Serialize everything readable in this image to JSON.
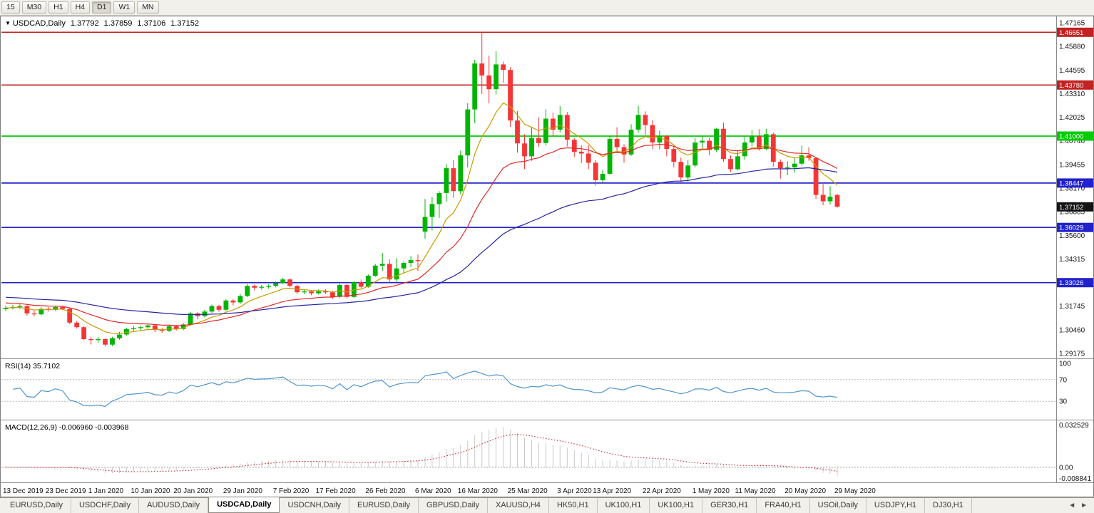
{
  "toolbar": {
    "timeframes": [
      "15",
      "M30",
      "H1",
      "H4",
      "D1",
      "W1",
      "MN"
    ],
    "active": "D1"
  },
  "chart_header": {
    "dropdown_icon": "▼",
    "title": "USDCAD,Daily",
    "open": "1.37792",
    "high": "1.37859",
    "low": "1.37106",
    "close": "1.37152"
  },
  "indicators": {
    "rsi_label": "RSI(14) 35.7102",
    "macd_label": "MACD(12,26,9) -0.006960 -0.003968"
  },
  "tabs": {
    "items": [
      "EURUSD,Daily",
      "USDCHF,Daily",
      "AUDUSD,Daily",
      "USDCAD,Daily",
      "USDCNH,Daily",
      "EURUSD,Daily",
      "GBPUSD,Daily",
      "XAUUSD,H4",
      "HK50,H1",
      "UK100,H1",
      "UK100,H1",
      "GER30,H1",
      "FRA40,H1",
      "USOil,Daily",
      "USDJPY,H1",
      "DJ30,H1"
    ],
    "active_index": 3,
    "left_arrow": "◄",
    "right_arrow": "►"
  },
  "chart_data": {
    "type": "candlestick",
    "symbol": "USDCAD",
    "timeframe": "Daily",
    "colors": {
      "up": "#00b400",
      "down": "#f43636",
      "background": "#ffffff",
      "border": "#808080"
    },
    "y_axis": {
      "min": 1.29175,
      "max": 1.47165,
      "tick_labels": [
        "1.47165",
        "1.45880",
        "1.44595",
        "1.43310",
        "1.42025",
        "1.40740",
        "1.39455",
        "1.38170",
        "1.36885",
        "1.35600",
        "1.34315",
        "1.33030",
        "1.31745",
        "1.30460",
        "1.29175"
      ]
    },
    "x_tick_labels": [
      "13 Dec 2019",
      "23 Dec 2019",
      "1 Jan 2020",
      "10 Jan 2020",
      "20 Jan 2020",
      "29 Jan 2020",
      "7 Feb 2020",
      "17 Feb 2020",
      "26 Feb 2020",
      "6 Mar 2020",
      "16 Mar 2020",
      "25 Mar 2020",
      "3 Apr 2020",
      "13 Apr 2020",
      "22 Apr 2020",
      "1 May 2020",
      "11 May 2020",
      "20 May 2020",
      "29 May 2020"
    ],
    "x_tick_indices": [
      0,
      6,
      12,
      18,
      24,
      31,
      38,
      44,
      51,
      58,
      64,
      71,
      78,
      83,
      90,
      97,
      103,
      110,
      117
    ],
    "hlines": [
      {
        "price": 1.46651,
        "color": "#c22222",
        "label": "1.46651"
      },
      {
        "price": 1.4378,
        "color": "#c22222",
        "label": "1.43780"
      },
      {
        "price": 1.41,
        "color": "#00cc00",
        "label": "1.41000"
      },
      {
        "price": 1.38447,
        "color": "#2222cc",
        "label": "1.38447"
      },
      {
        "price": 1.36029,
        "color": "#2222cc",
        "label": "1.36029"
      },
      {
        "price": 1.33026,
        "color": "#2222cc",
        "label": "1.33026"
      }
    ],
    "current_price": {
      "value": 1.37152,
      "label": "1.37152",
      "badge_color": "#141414"
    },
    "moving_averages": [
      {
        "name": "fast-ma",
        "period": 8,
        "color": "#c89b00",
        "seed": 1.3165
      },
      {
        "name": "medium-ma",
        "period": 21,
        "color": "#e02828",
        "seed": 1.3195
      },
      {
        "name": "slow-ma",
        "period": 55,
        "color": "#2424a0",
        "seed": 1.3225
      }
    ],
    "rsi": {
      "period": 14,
      "value": 35.7102,
      "color": "#4f94cd",
      "levels": [
        70,
        30
      ],
      "axis_labels": [
        "100",
        "70",
        "30"
      ],
      "range": [
        0,
        100
      ]
    },
    "macd": {
      "fast": 12,
      "slow": 26,
      "signal": 9,
      "macd_value": -0.00696,
      "signal_value": -0.003968,
      "axis_labels": [
        "0.032529",
        "0.00",
        "-0.008841"
      ],
      "range": [
        -0.008841,
        0.032529
      ],
      "histogram_color": "#c9c9c9",
      "signal_color": "#cc2929"
    },
    "candles": [
      [
        1.3158,
        1.3176,
        1.3148,
        1.3165
      ],
      [
        1.3165,
        1.3182,
        1.3156,
        1.317
      ],
      [
        1.317,
        1.3186,
        1.3159,
        1.3175
      ],
      [
        1.3175,
        1.318,
        1.3123,
        1.3135
      ],
      [
        1.3135,
        1.315,
        1.3119,
        1.313
      ],
      [
        1.313,
        1.3168,
        1.3124,
        1.316
      ],
      [
        1.316,
        1.317,
        1.3145,
        1.3155
      ],
      [
        1.3155,
        1.3176,
        1.3148,
        1.317
      ],
      [
        1.317,
        1.3175,
        1.3154,
        1.316
      ],
      [
        1.316,
        1.3164,
        1.3076,
        1.3085
      ],
      [
        1.3085,
        1.3094,
        1.3052,
        1.306
      ],
      [
        1.306,
        1.3066,
        1.299,
        1.2995
      ],
      [
        1.2995,
        1.3008,
        1.2966,
        1.299
      ],
      [
        1.299,
        1.3007,
        1.2977,
        1.2995
      ],
      [
        1.2995,
        1.3,
        1.2955,
        1.2965
      ],
      [
        1.2965,
        1.3008,
        1.2958,
        1.3
      ],
      [
        1.3,
        1.3034,
        1.2992,
        1.302
      ],
      [
        1.302,
        1.3056,
        1.3015,
        1.305
      ],
      [
        1.305,
        1.3066,
        1.304,
        1.3055
      ],
      [
        1.3055,
        1.3069,
        1.3044,
        1.306
      ],
      [
        1.306,
        1.3077,
        1.3052,
        1.307
      ],
      [
        1.307,
        1.3076,
        1.3033,
        1.3045
      ],
      [
        1.3045,
        1.3057,
        1.303,
        1.304
      ],
      [
        1.304,
        1.3073,
        1.3035,
        1.3065
      ],
      [
        1.3065,
        1.3072,
        1.3042,
        1.305
      ],
      [
        1.305,
        1.3082,
        1.3044,
        1.3075
      ],
      [
        1.3075,
        1.3143,
        1.3067,
        1.3135
      ],
      [
        1.3135,
        1.3142,
        1.3102,
        1.312
      ],
      [
        1.312,
        1.3156,
        1.3112,
        1.3145
      ],
      [
        1.3145,
        1.3183,
        1.3138,
        1.3175
      ],
      [
        1.3175,
        1.3182,
        1.3144,
        1.3155
      ],
      [
        1.3155,
        1.3213,
        1.3148,
        1.3205
      ],
      [
        1.3205,
        1.3212,
        1.3178,
        1.3195
      ],
      [
        1.3195,
        1.324,
        1.3187,
        1.323
      ],
      [
        1.323,
        1.3296,
        1.3223,
        1.3285
      ],
      [
        1.3285,
        1.3292,
        1.326,
        1.3275
      ],
      [
        1.3275,
        1.329,
        1.3264,
        1.328
      ],
      [
        1.328,
        1.3294,
        1.3269,
        1.3285
      ],
      [
        1.3285,
        1.3309,
        1.3277,
        1.33
      ],
      [
        1.33,
        1.3329,
        1.3293,
        1.332
      ],
      [
        1.332,
        1.3326,
        1.3278,
        1.3285
      ],
      [
        1.3285,
        1.3292,
        1.3242,
        1.325
      ],
      [
        1.325,
        1.3266,
        1.324,
        1.3255
      ],
      [
        1.3255,
        1.3261,
        1.3234,
        1.3245
      ],
      [
        1.3245,
        1.3265,
        1.3238,
        1.3255
      ],
      [
        1.3255,
        1.3267,
        1.3241,
        1.325
      ],
      [
        1.325,
        1.3259,
        1.3214,
        1.3225
      ],
      [
        1.3225,
        1.3297,
        1.3218,
        1.329
      ],
      [
        1.329,
        1.3296,
        1.3216,
        1.3225
      ],
      [
        1.3225,
        1.3312,
        1.322,
        1.3305
      ],
      [
        1.3305,
        1.3319,
        1.3272,
        1.328
      ],
      [
        1.328,
        1.3348,
        1.3274,
        1.334
      ],
      [
        1.334,
        1.3405,
        1.3334,
        1.3395
      ],
      [
        1.3395,
        1.3464,
        1.3366,
        1.3405
      ],
      [
        1.3405,
        1.3429,
        1.3302,
        1.332
      ],
      [
        1.332,
        1.3435,
        1.3307,
        1.338
      ],
      [
        1.338,
        1.3418,
        1.3357,
        1.341
      ],
      [
        1.341,
        1.3447,
        1.3387,
        1.3425
      ],
      [
        1.3425,
        1.3455,
        1.3367,
        1.342
      ],
      [
        1.358,
        1.3758,
        1.3543,
        1.366
      ],
      [
        1.366,
        1.3768,
        1.3587,
        1.373
      ],
      [
        1.373,
        1.38,
        1.3655,
        1.379
      ],
      [
        1.379,
        1.3947,
        1.3744,
        1.3925
      ],
      [
        1.3925,
        1.397,
        1.3764,
        1.38
      ],
      [
        1.38,
        1.4022,
        1.3783,
        1.3995
      ],
      [
        1.3995,
        1.4279,
        1.3929,
        1.4245
      ],
      [
        1.4245,
        1.4515,
        1.417,
        1.4495
      ],
      [
        1.4495,
        1.4665,
        1.4329,
        1.443
      ],
      [
        1.443,
        1.4538,
        1.4278,
        1.4355
      ],
      [
        1.4355,
        1.4562,
        1.4327,
        1.449
      ],
      [
        1.449,
        1.4505,
        1.439,
        1.446
      ],
      [
        1.446,
        1.4475,
        1.415,
        1.4185
      ],
      [
        1.4185,
        1.4237,
        1.401,
        1.406
      ],
      [
        1.406,
        1.411,
        1.392,
        1.399
      ],
      [
        1.399,
        1.415,
        1.3966,
        1.409
      ],
      [
        1.409,
        1.4202,
        1.404,
        1.4062
      ],
      [
        1.4062,
        1.4246,
        1.405,
        1.4195
      ],
      [
        1.4195,
        1.4228,
        1.4098,
        1.4135
      ],
      [
        1.4135,
        1.4263,
        1.412,
        1.4215
      ],
      [
        1.4215,
        1.4231,
        1.4043,
        1.408
      ],
      [
        1.408,
        1.409,
        1.3988,
        1.4015
      ],
      [
        1.4015,
        1.405,
        1.3953,
        1.4005
      ],
      [
        1.4005,
        1.405,
        1.3919,
        1.3955
      ],
      [
        1.3955,
        1.3971,
        1.3831,
        1.386
      ],
      [
        1.386,
        1.3917,
        1.3849,
        1.3895
      ],
      [
        1.3895,
        1.41,
        1.389,
        1.4085
      ],
      [
        1.4085,
        1.4148,
        1.4009,
        1.404
      ],
      [
        1.404,
        1.4056,
        1.3955,
        1.4
      ],
      [
        1.4,
        1.4164,
        1.3992,
        1.4135
      ],
      [
        1.4135,
        1.4265,
        1.4119,
        1.4215
      ],
      [
        1.4215,
        1.4235,
        1.4106,
        1.416
      ],
      [
        1.416,
        1.4187,
        1.403,
        1.4065
      ],
      [
        1.4065,
        1.413,
        1.4028,
        1.41
      ],
      [
        1.41,
        1.4105,
        1.399,
        1.403
      ],
      [
        1.403,
        1.4045,
        1.393,
        1.396
      ],
      [
        1.396,
        1.3983,
        1.385,
        1.3875
      ],
      [
        1.3875,
        1.397,
        1.3852,
        1.394
      ],
      [
        1.394,
        1.409,
        1.393,
        1.4065
      ],
      [
        1.4065,
        1.4102,
        1.4033,
        1.4075
      ],
      [
        1.4075,
        1.409,
        1.3995,
        1.4025
      ],
      [
        1.4025,
        1.4145,
        1.4013,
        1.414
      ],
      [
        1.414,
        1.4173,
        1.3961,
        1.3975
      ],
      [
        1.3975,
        1.3995,
        1.3905,
        1.392
      ],
      [
        1.392,
        1.4019,
        1.3913,
        1.399
      ],
      [
        1.399,
        1.41,
        1.3972,
        1.4065
      ],
      [
        1.4065,
        1.4133,
        1.4044,
        1.41
      ],
      [
        1.41,
        1.4138,
        1.402,
        1.403
      ],
      [
        1.403,
        1.414,
        1.4023,
        1.411
      ],
      [
        1.411,
        1.412,
        1.3934,
        1.396
      ],
      [
        1.396,
        1.3973,
        1.3869,
        1.3925
      ],
      [
        1.3925,
        1.3964,
        1.3887,
        1.393
      ],
      [
        1.393,
        1.3979,
        1.3901,
        1.395
      ],
      [
        1.395,
        1.4048,
        1.3939,
        1.3995
      ],
      [
        1.3995,
        1.4039,
        1.3966,
        1.398
      ],
      [
        1.398,
        1.3986,
        1.3757,
        1.378
      ],
      [
        1.378,
        1.3839,
        1.3724,
        1.3745
      ],
      [
        1.3745,
        1.3827,
        1.3728,
        1.377
      ],
      [
        1.37792,
        1.37859,
        1.37106,
        1.37152
      ]
    ]
  }
}
